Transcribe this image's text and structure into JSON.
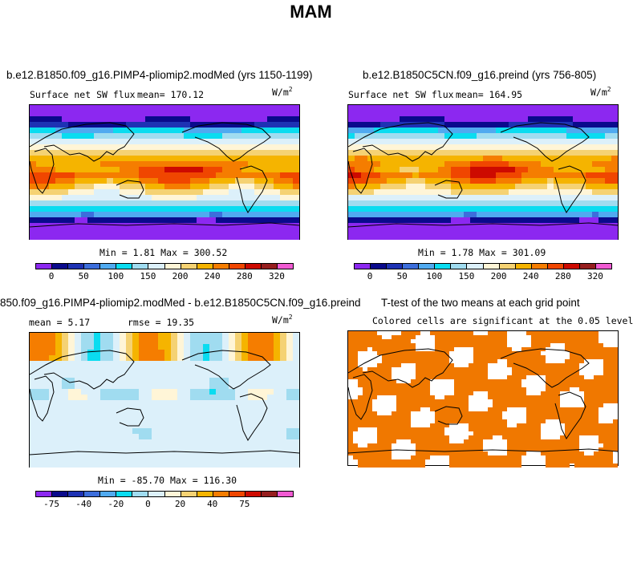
{
  "title": "MAM",
  "colors": {
    "scale": [
      "#8c28f0",
      "#0a0a8c",
      "#1e32b4",
      "#3c6edc",
      "#50aaf0",
      "#0adcf0",
      "#a0dcf0",
      "#dcf0fa",
      "#fff5d7",
      "#f5d273",
      "#f5b400",
      "#f57d00",
      "#f04600",
      "#cd0a00",
      "#961e1e",
      "#f05ad2"
    ],
    "ocean_fill": "#f07800"
  },
  "panels": {
    "top_left": {
      "title": "b.e12.B1850.f09_g16.PIMP4-pliomip2.modMed (yrs 1150-1199)",
      "subtitle": "Surface net SW flux",
      "mean": "mean= 170.12",
      "units": "W/m",
      "units_exp": "2",
      "minmax": "Min =    1.81  Max = 300.52"
    },
    "top_right": {
      "title": "b.e12.B1850C5CN.f09_g16.preind (yrs 756-805)",
      "subtitle": "Surface net SW flux",
      "mean": "mean= 164.95",
      "units": "W/m",
      "units_exp": "2",
      "minmax": "Min =    1.78  Max = 301.09"
    },
    "bottom_left": {
      "title": "850.f09_g16.PIMP4-pliomip2.modMed - b.e12.B1850C5CN.f09_g16.preind",
      "mean": "mean =    5.17",
      "rmse": "rmse =   19.35",
      "units": "W/m",
      "units_exp": "2",
      "minmax": "Min = -85.70  Max = 116.30"
    },
    "bottom_right": {
      "title": "T-test of the two means at each grid point",
      "subtitle": "Colored cells are significant at the 0.05 level"
    }
  },
  "chart_data": [
    {
      "type": "heatmap",
      "name": "top_left_map",
      "title": "b.e12.B1850.f09_g16.PIMP4-pliomip2.modMed (yrs 1150-1199)",
      "variable": "Surface net SW flux",
      "mean": 170.12,
      "min": 1.81,
      "max": 300.52,
      "units": "W/m2",
      "colorbar_ticks": [
        "0",
        "50",
        "100",
        "150",
        "200",
        "240",
        "280",
        "320"
      ],
      "colorbar_levels": 16
    },
    {
      "type": "heatmap",
      "name": "top_right_map",
      "title": "b.e12.B1850C5CN.f09_g16.preind (yrs 756-805)",
      "variable": "Surface net SW flux",
      "mean": 164.95,
      "min": 1.78,
      "max": 301.09,
      "units": "W/m2",
      "colorbar_ticks": [
        "0",
        "50",
        "100",
        "150",
        "200",
        "240",
        "280",
        "320"
      ],
      "colorbar_levels": 16
    },
    {
      "type": "heatmap",
      "name": "difference_map",
      "title": "850.f09_g16.PIMP4-pliomip2.modMed - b.e12.B1850C5CN.f09_g16.preind",
      "mean": 5.17,
      "rmse": 19.35,
      "min": -85.7,
      "max": 116.3,
      "units": "W/m2",
      "colorbar_ticks": [
        "-75",
        "-40",
        "-20",
        "0",
        "20",
        "40",
        "75"
      ],
      "colorbar_levels": 16
    },
    {
      "type": "heatmap",
      "name": "ttest_map",
      "title": "T-test of the two means at each grid point",
      "subtitle": "Colored cells are significant at the 0.05 level",
      "significance_level": 0.05
    }
  ]
}
